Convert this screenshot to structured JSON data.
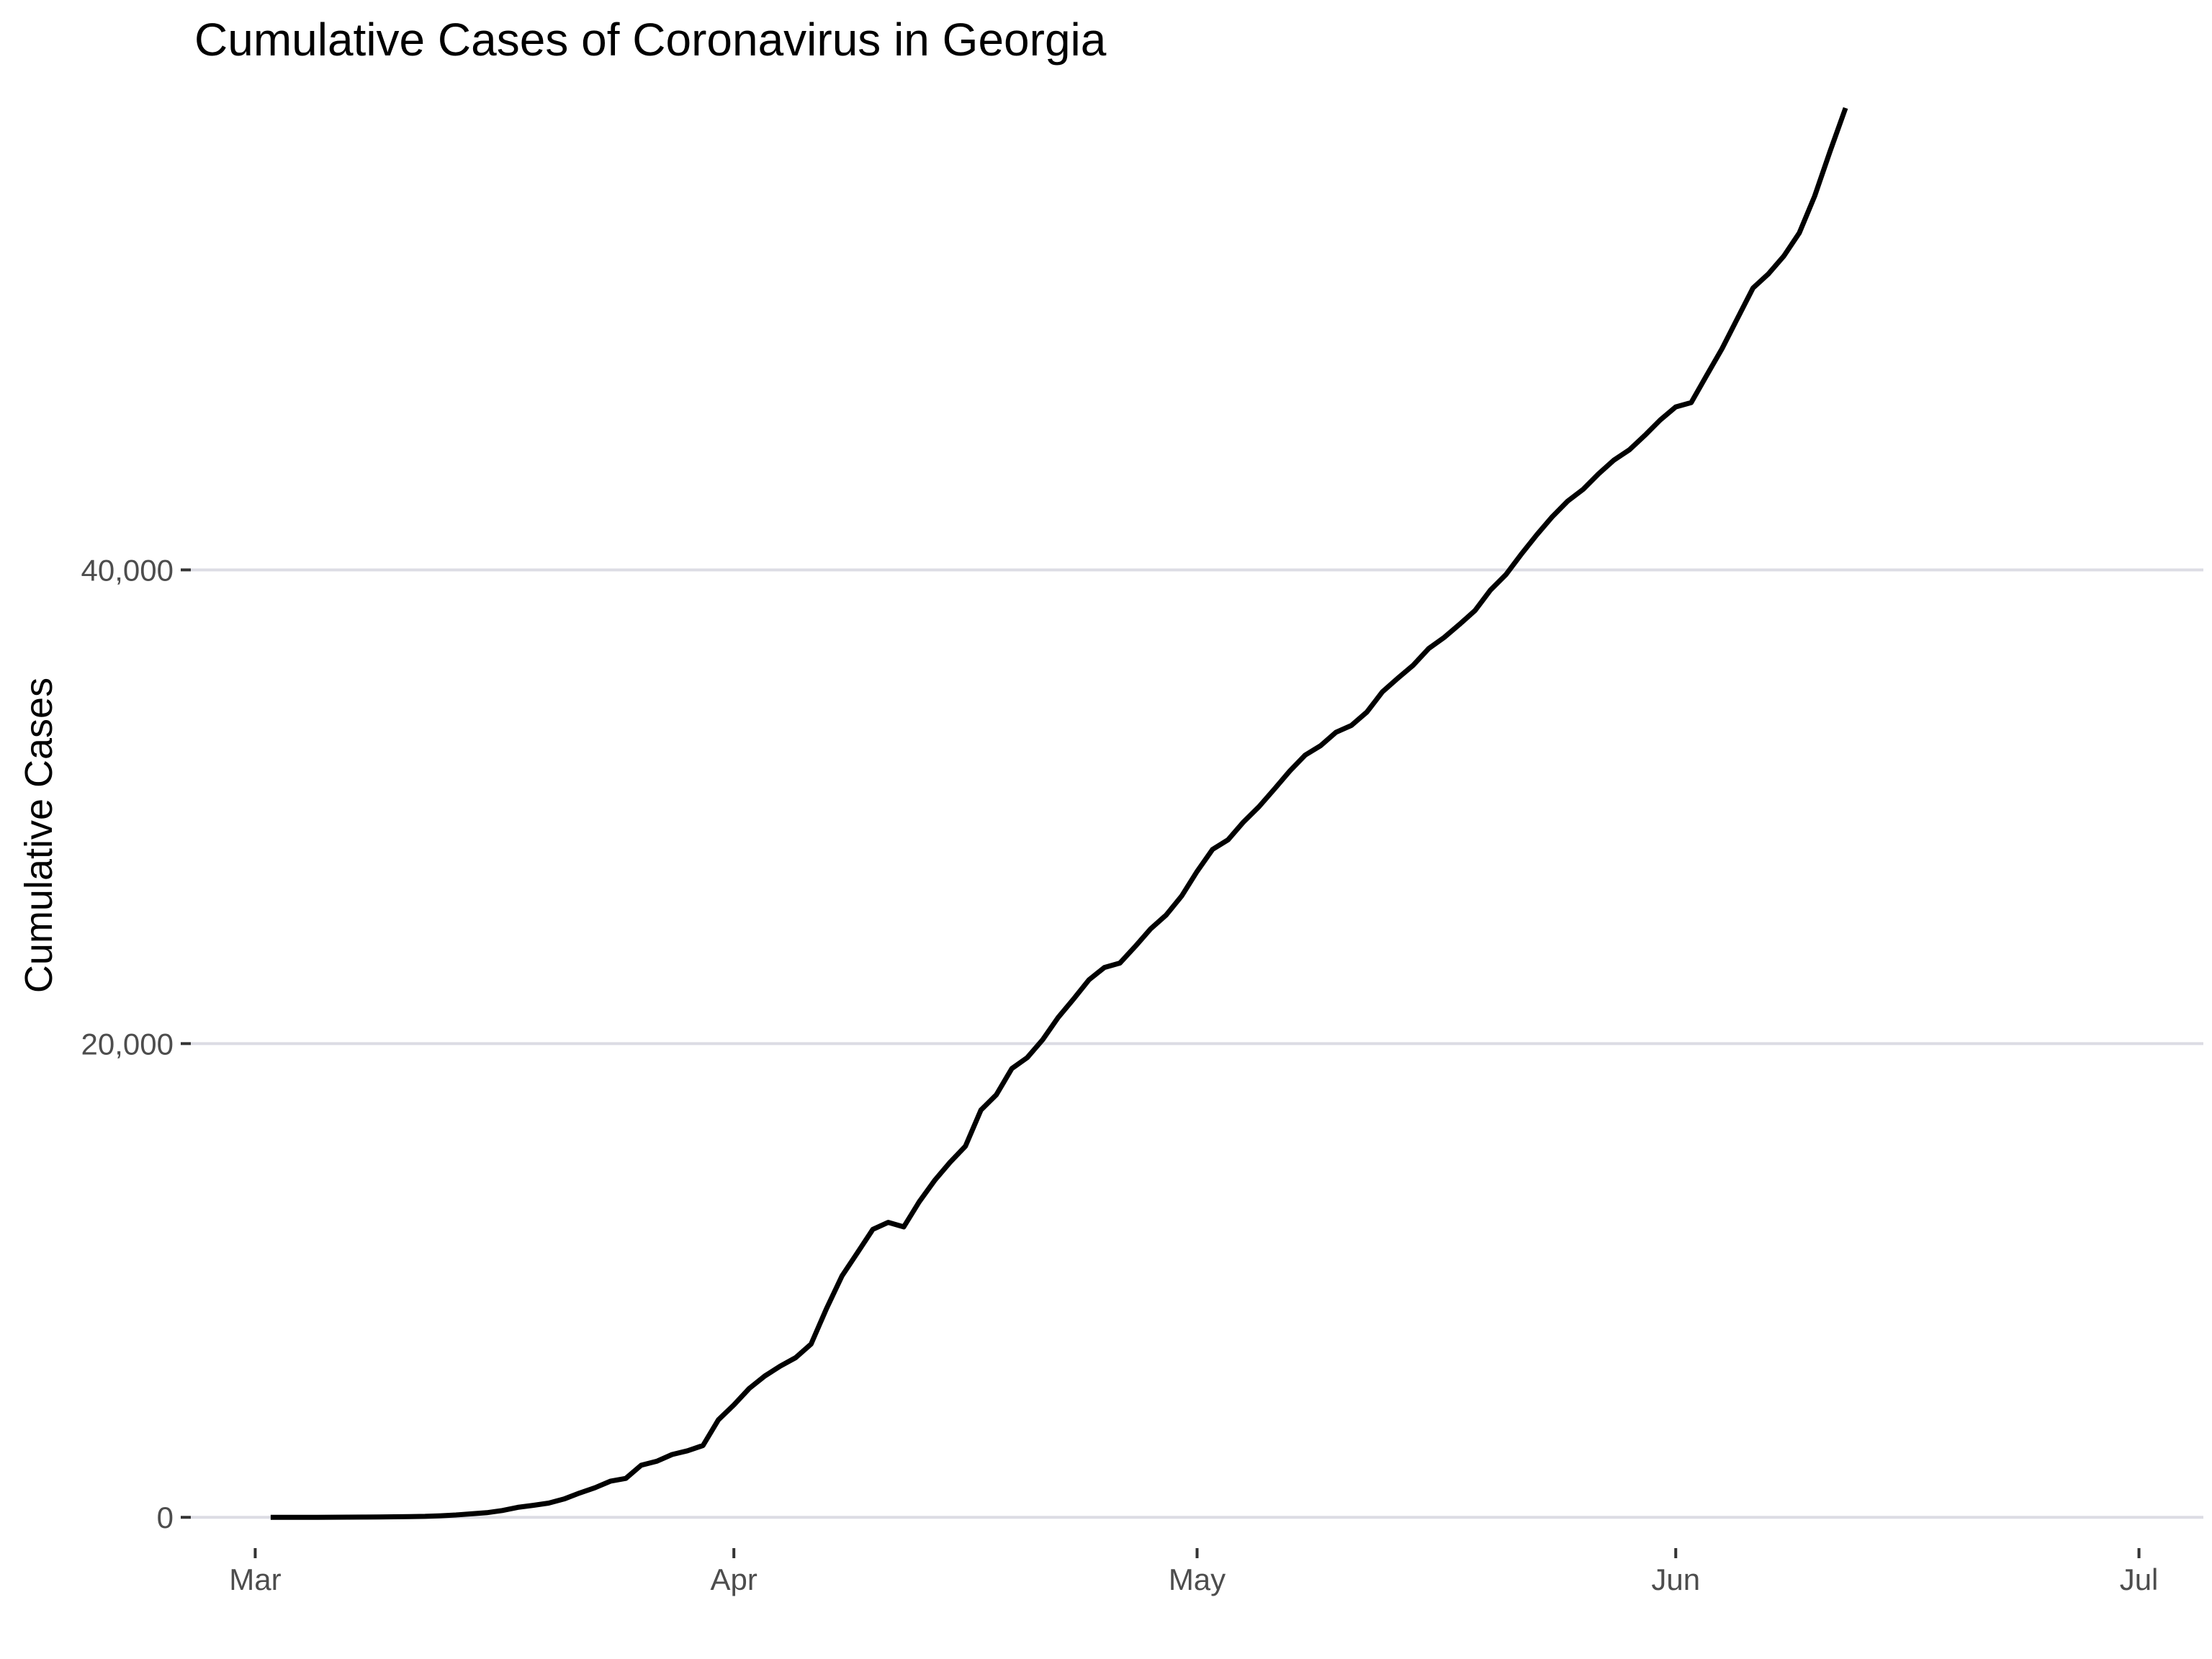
{
  "chart_data": {
    "type": "line",
    "title": "Cumulative Cases of Coronavirus in Georgia",
    "xlabel": "",
    "ylabel": "Cumulative Cases",
    "x_ticks": [
      "Mar",
      "Apr",
      "May",
      "Jun",
      "Jul"
    ],
    "y_ticks": [
      "0",
      "20,000",
      "40,000"
    ],
    "y_tick_values": [
      0,
      20000,
      40000
    ],
    "ylim": [
      -1300,
      59500
    ],
    "x_start_date": "2020-03-01",
    "x_end_date": "2020-07-01",
    "grid": "horizontal major + vertical short segments",
    "line_color": "#000000",
    "grid_color": "#dcdce4",
    "series": [
      {
        "name": "Cumulative Cases",
        "start_date": "2020-03-02",
        "values": [
          0,
          0,
          2,
          2,
          3,
          6,
          11,
          17,
          22,
          31,
          42,
          66,
          99,
          146,
          197,
          287,
          420,
          507,
          600,
          772,
          1026,
          1247,
          1525,
          1643,
          2198,
          2366,
          2651,
          2809,
          3032,
          4117,
          4748,
          5444,
          5967,
          6383,
          6742,
          7314,
          8818,
          10189,
          11166,
          12159,
          12452,
          12261,
          13315,
          14223,
          14987,
          15669,
          17194,
          17841,
          18947,
          19407,
          20166,
          21102,
          21883,
          22695,
          23216,
          23401,
          24106,
          24854,
          25431,
          26234,
          27270,
          28196,
          28602,
          29351,
          29998,
          30743,
          31509,
          32181,
          32579,
          33146,
          33434,
          34002,
          34848,
          35427,
          35977,
          36681,
          37147,
          37701,
          38283,
          39147,
          39801,
          40663,
          41482,
          42242,
          42902,
          43400,
          44054,
          44638,
          45070,
          45680,
          46331,
          46881,
          47063,
          48207,
          49344,
          50621,
          51898,
          52497,
          53249,
          54222,
          55783,
          57681,
          59500
        ]
      }
    ]
  }
}
